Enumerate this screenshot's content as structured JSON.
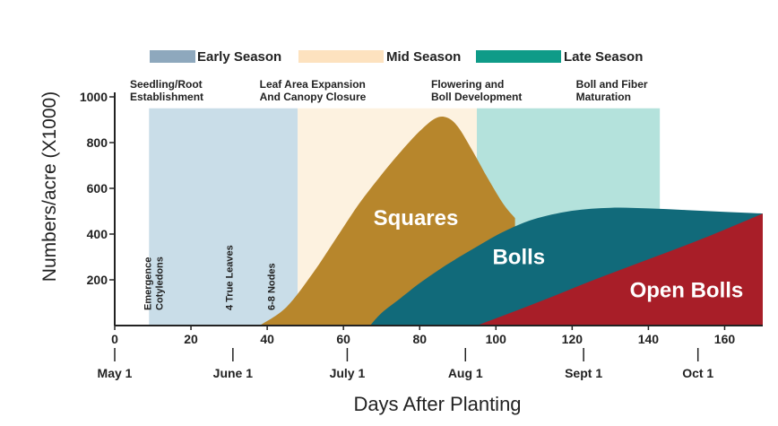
{
  "chart_data": {
    "type": "area",
    "ylabel": "Numbers/acre (X1000)",
    "xlabel": "Days After Planting",
    "xlim": [
      0,
      170
    ],
    "ylim": [
      0,
      1000
    ],
    "x_ticks": [
      0,
      20,
      40,
      60,
      80,
      100,
      120,
      140,
      160
    ],
    "y_ticks": [
      200,
      400,
      600,
      800,
      1000
    ],
    "legend": [
      {
        "name": "Early Season",
        "color": "#8ea8bd"
      },
      {
        "name": "Mid Season",
        "color": "#fde2bf"
      },
      {
        "name": "Late Season",
        "color": "#0f9b88"
      }
    ],
    "season_bands": [
      {
        "season": "Early Season",
        "x_start": 9,
        "x_end": 48,
        "y_top": 950,
        "color": "#c9dde8"
      },
      {
        "season": "Mid Season",
        "x_start": 48,
        "x_end": 95,
        "y_top": 950,
        "color": "#fdf2e0"
      },
      {
        "season": "Late Season",
        "x_start": 95,
        "x_end": 143,
        "y_top": 950,
        "color": "#b4e2dc"
      }
    ],
    "stages": [
      {
        "lines": [
          "Seedling/Root",
          "Establishment"
        ],
        "x": 4
      },
      {
        "lines": [
          "Leaf Area Expansion",
          "And Canopy Closure"
        ],
        "x": 38
      },
      {
        "lines": [
          "Flowering and",
          "Boll Development"
        ],
        "x": 83
      },
      {
        "lines": [
          "Boll and Fiber",
          "Maturation"
        ],
        "x": 121
      }
    ],
    "events": [
      {
        "lines": [
          "Emergence",
          "Cotyledons"
        ],
        "x": 10
      },
      {
        "lines": [
          "4 True Leaves"
        ],
        "x": 30
      },
      {
        "lines": [
          "6-8 Nodes"
        ],
        "x": 41
      }
    ],
    "month_markers": [
      {
        "label": "May 1",
        "x": 0
      },
      {
        "label": "June 1",
        "x": 31
      },
      {
        "label": "July 1",
        "x": 61
      },
      {
        "label": "Aug 1",
        "x": 92
      },
      {
        "label": "Sept 1",
        "x": 123
      },
      {
        "label": "Oct 1",
        "x": 153
      }
    ],
    "series": [
      {
        "name": "Squares",
        "color": "#b7862c",
        "label_x": 79,
        "label_y": 470,
        "points": [
          [
            38,
            0
          ],
          [
            45,
            80
          ],
          [
            52,
            230
          ],
          [
            58,
            380
          ],
          [
            64,
            530
          ],
          [
            70,
            660
          ],
          [
            75,
            760
          ],
          [
            80,
            850
          ],
          [
            84,
            905
          ],
          [
            87,
            910
          ],
          [
            90,
            870
          ],
          [
            94,
            760
          ],
          [
            98,
            640
          ],
          [
            102,
            530
          ],
          [
            105,
            470
          ]
        ]
      },
      {
        "name": "Bolls",
        "color": "#116a7a",
        "label_x": 106,
        "label_y": 300,
        "points": [
          [
            67,
            0
          ],
          [
            70,
            55
          ],
          [
            75,
            120
          ],
          [
            80,
            185
          ],
          [
            87,
            265
          ],
          [
            95,
            345
          ],
          [
            102,
            410
          ],
          [
            110,
            465
          ],
          [
            120,
            502
          ],
          [
            130,
            515
          ],
          [
            140,
            512
          ],
          [
            150,
            505
          ],
          [
            160,
            497
          ],
          [
            170,
            490
          ]
        ]
      },
      {
        "name": "Open Bolls",
        "color": "#a81e28",
        "label_x": 150,
        "label_y": 155,
        "points": [
          [
            95,
            0
          ],
          [
            110,
            95
          ],
          [
            125,
            195
          ],
          [
            140,
            290
          ],
          [
            155,
            385
          ],
          [
            170,
            490
          ]
        ]
      }
    ]
  }
}
